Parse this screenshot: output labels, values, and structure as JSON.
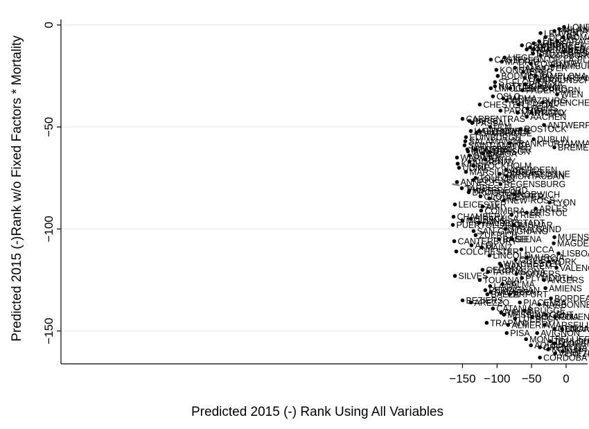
{
  "chart_data": {
    "type": "scatter",
    "xlabel": "Predicted 2015 (-) Rank Using All Variables",
    "ylabel": "Predicted 2015 (-)Rank w/o Fixed Factors * Mortality",
    "xlim": [
      -167,
      3
    ],
    "ylim": [
      -171,
      3
    ],
    "xticks": [
      -150,
      -100,
      -50,
      0
    ],
    "yticks": [
      0,
      -50,
      -100,
      -150
    ],
    "grid": "horizontal",
    "fit_line": {
      "style": "dashed",
      "color": "#808080",
      "x": [
        -165,
        0
      ],
      "y": [
        -78,
        -87
      ]
    },
    "points": [
      {
        "x": -3,
        "y": -1,
        "label": "LONDON"
      },
      {
        "x": -10,
        "y": -2,
        "label": "MILANO"
      },
      {
        "x": -17,
        "y": -3,
        "label": "PRAHA"
      },
      {
        "x": -4,
        "y": -6,
        "label": "ROMA"
      },
      {
        "x": -13,
        "y": -8,
        "label": "ZARAGOZA"
      },
      {
        "x": -3,
        "y": -13,
        "label": "BARCELONA"
      },
      {
        "x": -37,
        "y": -4,
        "label": "LEUVEN"
      },
      {
        "x": -30,
        "y": -6,
        "label": "DOUAI"
      },
      {
        "x": -39,
        "y": -8,
        "label": "LILLE"
      },
      {
        "x": -47,
        "y": -9,
        "label": "ARRAS"
      },
      {
        "x": -64,
        "y": -10,
        "label": "OSNABRUECK"
      },
      {
        "x": -52,
        "y": -11,
        "label": "GRENINGEN"
      },
      {
        "x": -57,
        "y": -12,
        "label": "INCA"
      },
      {
        "x": -47,
        "y": -12,
        "label": "NUERNBERG"
      },
      {
        "x": -48,
        "y": -14,
        "label": "BRUXELLES"
      },
      {
        "x": -37,
        "y": -15,
        "label": "AUGSBURG"
      },
      {
        "x": -20,
        "y": -20,
        "label": "HAMBURG"
      },
      {
        "x": -51,
        "y": -19,
        "label": "COVENTRY"
      },
      {
        "x": -89,
        "y": -16,
        "label": "LIEGE"
      },
      {
        "x": -109,
        "y": -17,
        "label": "CASTELLON-DE-LA-PLANA"
      },
      {
        "x": -93,
        "y": -18,
        "label": "MADRID"
      },
      {
        "x": -74,
        "y": -21,
        "label": "HANNOVER"
      },
      {
        "x": -62,
        "y": -23,
        "label": "IEPER"
      },
      {
        "x": -101,
        "y": -22,
        "label": "KONSTANZ"
      },
      {
        "x": -99,
        "y": -25,
        "label": "BODMIN"
      },
      {
        "x": -60,
        "y": -26,
        "label": "FRANKFURTANDERODER"
      },
      {
        "x": -44,
        "y": -25,
        "label": "PAMPLONA"
      },
      {
        "x": -40,
        "y": -27,
        "label": "BRAUNSCHWEIG"
      },
      {
        "x": -103,
        "y": -28,
        "label": "ST-FLOUR"
      },
      {
        "x": -59,
        "y": -29,
        "label": "PISTOIA"
      },
      {
        "x": -103,
        "y": -30,
        "label": "NOTTINGHAM"
      },
      {
        "x": -81,
        "y": -31,
        "label": "LUENEBURG"
      },
      {
        "x": -109,
        "y": -31,
        "label": "LIMOGES"
      },
      {
        "x": -63,
        "y": -32,
        "label": "PADERBORN"
      },
      {
        "x": -13,
        "y": -34,
        "label": "WIEN"
      },
      {
        "x": -106,
        "y": -35,
        "label": "OSLO"
      },
      {
        "x": -91,
        "y": -36,
        "label": "PARMA"
      },
      {
        "x": -86,
        "y": -37,
        "label": "WUERZBURG"
      },
      {
        "x": -34,
        "y": -38,
        "label": "MUENCHEN"
      },
      {
        "x": -125,
        "y": -39,
        "label": "CHESTER"
      },
      {
        "x": -69,
        "y": -39,
        "label": "LERIDA"
      },
      {
        "x": -56,
        "y": -41,
        "label": "REIMS"
      },
      {
        "x": -95,
        "y": -42,
        "label": "PARCHIM"
      },
      {
        "x": -70,
        "y": -43,
        "label": "MARTIGNY"
      },
      {
        "x": -50,
        "y": -43,
        "label": "PRATO"
      },
      {
        "x": -57,
        "y": -45,
        "label": "AACHEN"
      },
      {
        "x": -150,
        "y": -46,
        "label": "CARPENTRAS"
      },
      {
        "x": -140,
        "y": -47,
        "label": "PARIS"
      },
      {
        "x": -136,
        "y": -48,
        "label": "PASSAU"
      },
      {
        "x": -32,
        "y": -49,
        "label": "ANTWERPEN"
      },
      {
        "x": -110,
        "y": -50,
        "label": "ULM"
      },
      {
        "x": -66,
        "y": -51,
        "label": "ROSTOCK"
      },
      {
        "x": -138,
        "y": -52,
        "label": "HALESOWEN"
      },
      {
        "x": -126,
        "y": -52,
        "label": "GRENOBLE"
      },
      {
        "x": -130,
        "y": -53,
        "label": "CAMBRIDGE"
      },
      {
        "x": -145,
        "y": -55,
        "label": "EDINBURGH"
      },
      {
        "x": -146,
        "y": -57,
        "label": "SALAMANCA"
      },
      {
        "x": -47,
        "y": -56,
        "label": "DUBLIN"
      },
      {
        "x": -82,
        "y": -58,
        "label": "FRANKFURTAMMAIN"
      },
      {
        "x": -147,
        "y": -59,
        "label": "SAINT-AMAND"
      },
      {
        "x": -17,
        "y": -60,
        "label": "BREMEN"
      },
      {
        "x": -143,
        "y": -61,
        "label": "MONTPELLIER"
      },
      {
        "x": -131,
        "y": -61,
        "label": "TORINO"
      },
      {
        "x": -142,
        "y": -62,
        "label": "MONTBRISON"
      },
      {
        "x": -120,
        "y": -63,
        "label": "BRAGA"
      },
      {
        "x": -140,
        "y": -64,
        "label": "GIVET"
      },
      {
        "x": -158,
        "y": -65,
        "label": "WARWICK"
      },
      {
        "x": -117,
        "y": -66,
        "label": "BATH"
      },
      {
        "x": -140,
        "y": -67,
        "label": "KILKENNY"
      },
      {
        "x": -157,
        "y": -68,
        "label": "KIEL"
      },
      {
        "x": -134,
        "y": -69,
        "label": "STOCKHOLM"
      },
      {
        "x": -155,
        "y": -70,
        "label": "UDINE"
      },
      {
        "x": -87,
        "y": -71,
        "label": "ABERDEEN"
      },
      {
        "x": -145,
        "y": -72,
        "label": "MARSILLARGUES"
      },
      {
        "x": -96,
        "y": -73,
        "label": "CARCASSONNE"
      },
      {
        "x": -86,
        "y": -74,
        "label": "MONTAUBAN"
      },
      {
        "x": -131,
        "y": -75,
        "label": "TOULON"
      },
      {
        "x": -134,
        "y": -76,
        "label": "LOUEVE"
      },
      {
        "x": -158,
        "y": -77,
        "label": "ANNECY"
      },
      {
        "x": -95,
        "y": -78,
        "label": "REGENSBURG"
      },
      {
        "x": -151,
        "y": -80,
        "label": "TARBES"
      },
      {
        "x": -140,
        "y": -81,
        "label": "WATERFORD"
      },
      {
        "x": -141,
        "y": -82,
        "label": "DROGHEDA"
      },
      {
        "x": -75,
        "y": -83,
        "label": "NORWICH"
      },
      {
        "x": -124,
        "y": -84,
        "label": "GLOUCESTER"
      },
      {
        "x": -111,
        "y": -85,
        "label": "CORK"
      },
      {
        "x": -90,
        "y": -86,
        "label": "NEW-ROSS"
      },
      {
        "x": -161,
        "y": -88,
        "label": "LEICESTER"
      },
      {
        "x": -121,
        "y": -89,
        "label": "AIX"
      },
      {
        "x": -24,
        "y": -87,
        "label": "LYON"
      },
      {
        "x": -123,
        "y": -91,
        "label": "COIMBRA"
      },
      {
        "x": -44,
        "y": -90,
        "label": "ARLES"
      },
      {
        "x": -57,
        "y": -92,
        "label": "BRISTOL"
      },
      {
        "x": -163,
        "y": -94,
        "label": "CHAMBERY"
      },
      {
        "x": -79,
        "y": -93,
        "label": "TRIER"
      },
      {
        "x": -138,
        "y": -95,
        "label": "SIRACUSA"
      },
      {
        "x": -150,
        "y": -96,
        "label": "MOULINS"
      },
      {
        "x": -126,
        "y": -97,
        "label": "HALBERSTADT"
      },
      {
        "x": -164,
        "y": -98,
        "label": "PUERTOLLANO"
      },
      {
        "x": -76,
        "y": -98,
        "label": "WISMAR"
      },
      {
        "x": -88,
        "y": -100,
        "label": "STRALSUND"
      },
      {
        "x": -134,
        "y": -101,
        "label": "SAN-GIMIGNANO"
      },
      {
        "x": -131,
        "y": -103,
        "label": "ZUERICH"
      },
      {
        "x": -162,
        "y": -106,
        "label": "CANTERBURY"
      },
      {
        "x": -97,
        "y": -105,
        "label": "BASEL"
      },
      {
        "x": -78,
        "y": -105,
        "label": "SIENA"
      },
      {
        "x": -137,
        "y": -108,
        "label": "ALBI"
      },
      {
        "x": -122,
        "y": -109,
        "label": "MAINZ"
      },
      {
        "x": -65,
        "y": -110,
        "label": "LUCCA"
      },
      {
        "x": -159,
        "y": -111,
        "label": "COLCHESTER"
      },
      {
        "x": -17,
        "y": -104,
        "label": "MUENSTER"
      },
      {
        "x": -18,
        "y": -107,
        "label": "MAGDEBURG"
      },
      {
        "x": -11,
        "y": -112,
        "label": "LISBOA"
      },
      {
        "x": -111,
        "y": -113,
        "label": "LINCOLN"
      },
      {
        "x": -73,
        "y": -115,
        "label": "ORVIETO"
      },
      {
        "x": -57,
        "y": -114,
        "label": "MURCIA"
      },
      {
        "x": -96,
        "y": -117,
        "label": "WINCHESTER"
      },
      {
        "x": -94,
        "y": -118,
        "label": "SANTAREM"
      },
      {
        "x": -25,
        "y": -116,
        "label": "YORK"
      },
      {
        "x": -14,
        "y": -119,
        "label": "VALENCIA"
      },
      {
        "x": -121,
        "y": -120,
        "label": "GERONA"
      },
      {
        "x": -113,
        "y": -121,
        "label": "TARRAGONA"
      },
      {
        "x": -72,
        "y": -122,
        "label": "POITIERS"
      },
      {
        "x": -161,
        "y": -123,
        "label": "SILVES"
      },
      {
        "x": -64,
        "y": -124,
        "label": "PLYMOUTH"
      },
      {
        "x": -32,
        "y": -125,
        "label": "ANGERS"
      },
      {
        "x": -125,
        "y": -125,
        "label": "TOURNAI"
      },
      {
        "x": -92,
        "y": -127,
        "label": "PALMA"
      },
      {
        "x": -110,
        "y": -128,
        "label": "LAON"
      },
      {
        "x": -30,
        "y": -129,
        "label": "AMIENS"
      },
      {
        "x": -117,
        "y": -130,
        "label": "PERPIGNAN"
      },
      {
        "x": -109,
        "y": -131,
        "label": "NAVARRA"
      },
      {
        "x": -82,
        "y": -132,
        "label": "ERFURT"
      },
      {
        "x": -114,
        "y": -132,
        "label": "BAEZA"
      },
      {
        "x": -22,
        "y": -134,
        "label": "BORDEAUX"
      },
      {
        "x": -150,
        "y": -135,
        "label": "BEZIERS"
      },
      {
        "x": -138,
        "y": -136,
        "label": "AREZZO"
      },
      {
        "x": -67,
        "y": -136,
        "label": "PIACENZA"
      },
      {
        "x": -39,
        "y": -137,
        "label": "NARBONNE"
      },
      {
        "x": -106,
        "y": -139,
        "label": "CATANIA"
      },
      {
        "x": -60,
        "y": -140,
        "label": "BRUGGE"
      },
      {
        "x": -94,
        "y": -141,
        "label": "RIMINI"
      },
      {
        "x": -29,
        "y": -142,
        "label": "GENT"
      },
      {
        "x": -90,
        "y": -142,
        "label": "MESSINA"
      },
      {
        "x": -49,
        "y": -143,
        "label": "BOLOGNA"
      },
      {
        "x": -74,
        "y": -144,
        "label": "LUEBECK"
      },
      {
        "x": -16,
        "y": -143,
        "label": "ROUEN"
      },
      {
        "x": -115,
        "y": -146,
        "label": "TRAPANI"
      },
      {
        "x": -84,
        "y": -147,
        "label": "ALMERIA"
      },
      {
        "x": -31,
        "y": -147,
        "label": "MARSEILLE"
      },
      {
        "x": -17,
        "y": -149,
        "label": "GENOA"
      },
      {
        "x": -6,
        "y": -149,
        "label": "GRANADA"
      },
      {
        "x": -42,
        "y": -151,
        "label": "AVIGNON"
      },
      {
        "x": -86,
        "y": -151,
        "label": "PISA"
      },
      {
        "x": -58,
        "y": -154,
        "label": "MONTPELLIER"
      },
      {
        "x": -23,
        "y": -155,
        "label": "TOULOUSE"
      },
      {
        "x": -17,
        "y": -156,
        "label": "FLORENCE"
      },
      {
        "x": -51,
        "y": -157,
        "label": "AQUILA"
      },
      {
        "x": -38,
        "y": -158,
        "label": "CREMONA"
      },
      {
        "x": -26,
        "y": -159,
        "label": "KOELN"
      },
      {
        "x": -5,
        "y": -160,
        "label": "NAPLES"
      },
      {
        "x": -16,
        "y": -161,
        "label": "VENEZIA"
      },
      {
        "x": -38,
        "y": -163,
        "label": "CORDOBA"
      }
    ]
  }
}
